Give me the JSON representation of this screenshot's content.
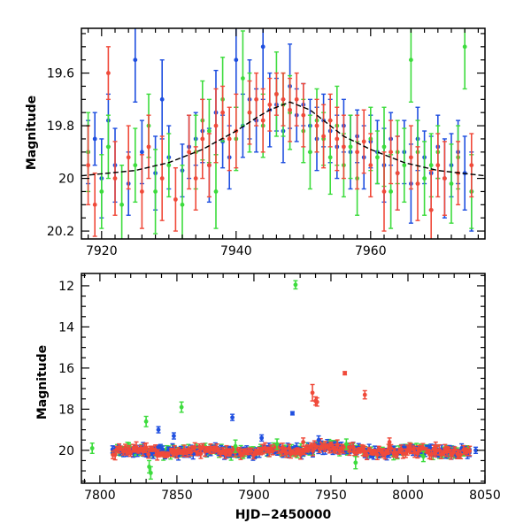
{
  "colors": {
    "blue": "#1f4fe0",
    "green": "#3ddc3d",
    "red": "#f04a3a",
    "black": "#000000"
  },
  "chart_data": [
    {
      "type": "scatter",
      "title": "",
      "xlabel": "",
      "ylabel": "Magnitude",
      "xlim": [
        7917,
        7977
      ],
      "ylim": [
        19.43,
        20.23
      ],
      "y_inverted": true,
      "xticks": [
        7920,
        7940,
        7960
      ],
      "yticks": [
        19.6,
        19.8,
        20,
        20.2
      ],
      "ytick_labels": [
        "19.6",
        "19.8",
        "20",
        "20.2"
      ],
      "model_curve": {
        "peak_x": 7948,
        "baseline": 19.99,
        "peak": 19.71,
        "x": [
          7917,
          7925,
          7930,
          7935,
          7940,
          7943,
          7945,
          7947,
          7948,
          7949,
          7951,
          7953,
          7956,
          7960,
          7965,
          7970,
          7977
        ],
        "y": [
          19.99,
          19.97,
          19.94,
          19.89,
          19.82,
          19.77,
          19.74,
          19.72,
          19.71,
          19.72,
          19.74,
          19.78,
          19.84,
          19.89,
          19.94,
          19.97,
          19.99
        ]
      },
      "series": [
        {
          "color": "blue",
          "x": [
            7918,
            7919,
            7920,
            7921,
            7922,
            7924,
            7925,
            7926,
            7928,
            7929,
            7930,
            7932,
            7933,
            7934,
            7935,
            7936,
            7937,
            7938,
            7939,
            7940,
            7941,
            7942,
            7943,
            7944,
            7945,
            7946,
            7947,
            7948,
            7949,
            7950,
            7951,
            7952,
            7953,
            7954,
            7955,
            7956,
            7957,
            7958,
            7959,
            7960,
            7961,
            7962,
            7963,
            7964,
            7965,
            7966,
            7967,
            7968,
            7969,
            7970,
            7971,
            7972,
            7973,
            7974,
            7975
          ],
          "y": [
            19.9,
            19.85,
            20.0,
            19.78,
            19.95,
            20.02,
            19.55,
            19.9,
            19.98,
            19.7,
            19.92,
            19.97,
            19.88,
            19.85,
            19.82,
            19.95,
            19.75,
            19.86,
            19.92,
            19.55,
            19.8,
            19.7,
            19.78,
            19.5,
            19.74,
            19.72,
            19.82,
            19.65,
            19.76,
            19.72,
            19.8,
            19.85,
            19.78,
            19.82,
            19.88,
            19.8,
            19.9,
            19.84,
            19.92,
            19.86,
            19.9,
            19.95,
            19.85,
            19.98,
            19.9,
            20.02,
            19.85,
            19.92,
            19.98,
            19.88,
            20.0,
            19.95,
            19.9,
            19.98,
            20.05
          ],
          "err": [
            0.12,
            0.1,
            0.15,
            0.1,
            0.14,
            0.12,
            0.16,
            0.12,
            0.14,
            0.15,
            0.12,
            0.1,
            0.12,
            0.1,
            0.12,
            0.14,
            0.16,
            0.1,
            0.12,
            0.18,
            0.12,
            0.15,
            0.12,
            0.2,
            0.14,
            0.1,
            0.12,
            0.16,
            0.1,
            0.08,
            0.1,
            0.12,
            0.1,
            0.12,
            0.12,
            0.1,
            0.14,
            0.1,
            0.12,
            0.1,
            0.12,
            0.14,
            0.1,
            0.14,
            0.12,
            0.15,
            0.12,
            0.1,
            0.14,
            0.12,
            0.15,
            0.12,
            0.12,
            0.14,
            0.15
          ]
        },
        {
          "color": "green",
          "x": [
            7918,
            7920,
            7921,
            7923,
            7925,
            7927,
            7928,
            7930,
            7932,
            7934,
            7935,
            7936,
            7937,
            7938,
            7940,
            7941,
            7942,
            7944,
            7946,
            7947,
            7948,
            7950,
            7951,
            7952,
            7953,
            7954,
            7955,
            7956,
            7957,
            7958,
            7960,
            7961,
            7962,
            7963,
            7964,
            7965,
            7966,
            7967,
            7968,
            7969,
            7970,
            7972,
            7973,
            7974,
            7975
          ],
          "y": [
            19.9,
            20.05,
            19.88,
            20.1,
            19.95,
            19.8,
            20.05,
            19.95,
            20.1,
            19.9,
            19.78,
            19.82,
            20.05,
            19.7,
            19.85,
            19.62,
            19.75,
            19.8,
            19.68,
            19.72,
            19.75,
            19.82,
            19.9,
            19.78,
            19.85,
            19.92,
            19.8,
            19.95,
            19.88,
            20.0,
            19.85,
            19.92,
            19.88,
            20.05,
            19.9,
            19.95,
            19.55,
            19.9,
            20.0,
            19.95,
            19.9,
            20.02,
            19.92,
            19.5,
            20.05
          ],
          "err": [
            0.15,
            0.14,
            0.12,
            0.15,
            0.14,
            0.12,
            0.16,
            0.12,
            0.15,
            0.14,
            0.15,
            0.12,
            0.14,
            0.16,
            0.12,
            0.18,
            0.15,
            0.12,
            0.16,
            0.12,
            0.14,
            0.12,
            0.14,
            0.12,
            0.1,
            0.14,
            0.15,
            0.12,
            0.12,
            0.14,
            0.12,
            0.1,
            0.15,
            0.14,
            0.12,
            0.14,
            0.16,
            0.12,
            0.14,
            0.12,
            0.1,
            0.15,
            0.12,
            0.16,
            0.14
          ]
        },
        {
          "color": "red",
          "x": [
            7918,
            7919,
            7921,
            7922,
            7924,
            7926,
            7927,
            7929,
            7931,
            7933,
            7934,
            7935,
            7936,
            7937,
            7938,
            7939,
            7940,
            7942,
            7943,
            7944,
            7945,
            7946,
            7947,
            7948,
            7949,
            7950,
            7952,
            7953,
            7954,
            7955,
            7956,
            7958,
            7959,
            7960,
            7962,
            7963,
            7964,
            7966,
            7967,
            7969,
            7970,
            7971,
            7973,
            7975
          ],
          "y": [
            19.95,
            20.1,
            19.6,
            20.0,
            19.92,
            20.05,
            19.88,
            20.0,
            20.08,
            19.9,
            20.0,
            19.85,
            19.95,
            19.8,
            19.75,
            19.85,
            19.82,
            19.75,
            19.7,
            19.78,
            19.72,
            19.68,
            19.7,
            19.74,
            19.7,
            19.76,
            19.8,
            19.84,
            19.78,
            19.85,
            19.88,
            19.9,
            19.86,
            19.95,
            20.05,
            19.9,
            19.98,
            19.92,
            20.02,
            20.12,
            19.95,
            20.0,
            19.98,
            19.95
          ],
          "err": [
            0.15,
            0.12,
            0.1,
            0.14,
            0.12,
            0.14,
            0.12,
            0.16,
            0.12,
            0.14,
            0.12,
            0.15,
            0.12,
            0.14,
            0.1,
            0.12,
            0.14,
            0.12,
            0.1,
            0.12,
            0.1,
            0.08,
            0.1,
            0.12,
            0.1,
            0.12,
            0.1,
            0.12,
            0.1,
            0.12,
            0.12,
            0.14,
            0.12,
            0.12,
            0.15,
            0.12,
            0.14,
            0.12,
            0.14,
            0.15,
            0.12,
            0.14,
            0.12,
            0.12
          ]
        }
      ]
    },
    {
      "type": "scatter",
      "title": "",
      "xlabel": "HJD−2450000",
      "ylabel": "Magnitude",
      "xlim": [
        7788,
        8050
      ],
      "ylim": [
        11.4,
        21.6
      ],
      "y_inverted": true,
      "xticks": [
        7800,
        7850,
        7900,
        7950,
        8000,
        8050
      ],
      "yticks": [
        12,
        14,
        16,
        18,
        20
      ],
      "band": {
        "x_start": 7808,
        "x_end": 8040,
        "base_mag": 20.05,
        "amplitude": 0.2,
        "wave_period": 45
      },
      "outliers": [
        {
          "color": "green",
          "x": 7795,
          "y": 19.9,
          "err": 0.25
        },
        {
          "color": "green",
          "x": 7830,
          "y": 18.6,
          "err": 0.25
        },
        {
          "color": "green",
          "x": 7832,
          "y": 20.8,
          "err": 0.3
        },
        {
          "color": "green",
          "x": 7833,
          "y": 21.1,
          "err": 0.3
        },
        {
          "color": "blue",
          "x": 7838,
          "y": 19.0,
          "err": 0.15
        },
        {
          "color": "green",
          "x": 7853,
          "y": 17.9,
          "err": 0.25
        },
        {
          "color": "blue",
          "x": 7848,
          "y": 19.3,
          "err": 0.15
        },
        {
          "color": "blue",
          "x": 7886,
          "y": 18.4,
          "err": 0.15
        },
        {
          "color": "green",
          "x": 7888,
          "y": 19.8,
          "err": 0.3
        },
        {
          "color": "blue",
          "x": 7905,
          "y": 19.4,
          "err": 0.15
        },
        {
          "color": "green",
          "x": 7915,
          "y": 19.7,
          "err": 0.25
        },
        {
          "color": "blue",
          "x": 7925,
          "y": 18.2,
          "err": 0.08
        },
        {
          "color": "green",
          "x": 7927,
          "y": 11.95,
          "err": 0.2
        },
        {
          "color": "red",
          "x": 7932,
          "y": 19.6,
          "err": 0.2
        },
        {
          "color": "red",
          "x": 7938,
          "y": 17.2,
          "err": 0.4
        },
        {
          "color": "red",
          "x": 7940,
          "y": 17.6,
          "err": 0.2
        },
        {
          "color": "red",
          "x": 7941,
          "y": 17.65,
          "err": 0.2
        },
        {
          "color": "blue",
          "x": 7942,
          "y": 19.5,
          "err": 0.2
        },
        {
          "color": "red",
          "x": 7959,
          "y": 16.25,
          "err": 0.08
        },
        {
          "color": "red",
          "x": 7972,
          "y": 17.3,
          "err": 0.2
        },
        {
          "color": "green",
          "x": 7966,
          "y": 20.6,
          "err": 0.3
        },
        {
          "color": "red",
          "x": 7988,
          "y": 19.6,
          "err": 0.2
        },
        {
          "color": "green",
          "x": 8010,
          "y": 20.3,
          "err": 0.25
        },
        {
          "color": "blue",
          "x": 8044,
          "y": 20.0,
          "err": 0.15
        },
        {
          "color": "red",
          "x": 8018,
          "y": 19.8,
          "err": 0.2
        },
        {
          "color": "green",
          "x": 7960,
          "y": 19.7,
          "err": 0.25
        }
      ]
    }
  ]
}
